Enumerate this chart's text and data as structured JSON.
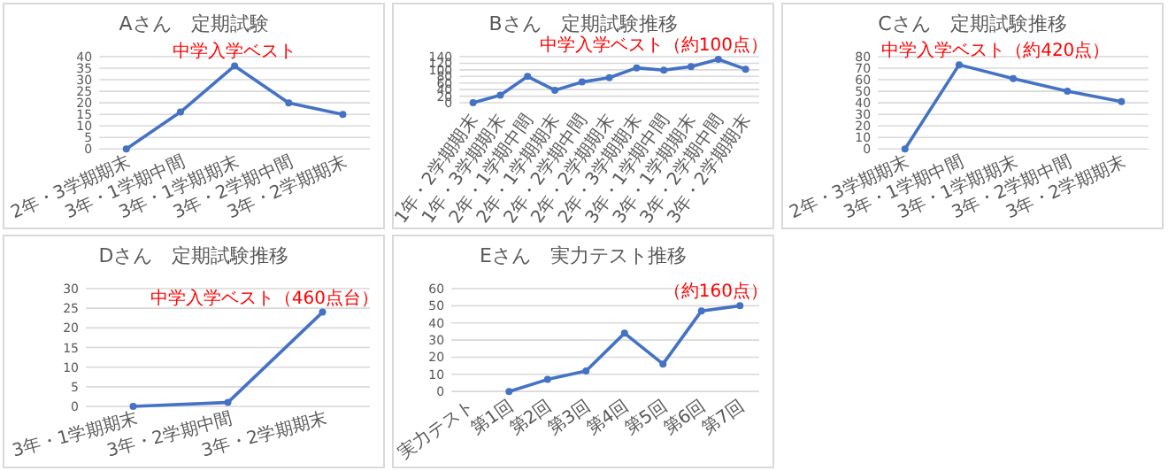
{
  "chart_data": [
    {
      "type": "line",
      "title": "Aさん　定期試験",
      "categories": [
        "2年・3学期期末",
        "3年・1学期中間",
        "3年・1学期期末",
        "3年・2学期中間",
        "3年・2学期期末"
      ],
      "values": [
        0,
        16,
        36,
        20,
        15
      ],
      "color": "#4472c4",
      "ylim": [
        0,
        40
      ],
      "yticks": [
        0,
        5,
        10,
        15,
        20,
        25,
        30,
        35,
        40
      ],
      "grid": "y",
      "marker": "circle",
      "line_style": "solid",
      "annotations": [
        {
          "text": "中学入学ベスト",
          "x": "3年・1学期期末",
          "y": 36
        }
      ]
    },
    {
      "type": "line",
      "title": "Bさん　定期試験推移",
      "categories": [
        "1年・2学期期末",
        "1年・3学期期末",
        "2年・1学期中間",
        "2年・1学期期末",
        "2年・2学期中間",
        "2年・2学期期末",
        "2年・3学期期末",
        "3年・1学期中間",
        "3年・1学期期末",
        "3年・2学期中間",
        "3年・2学期期末"
      ],
      "values": [
        0,
        23,
        80,
        38,
        63,
        76,
        106,
        99,
        110,
        132,
        102
      ],
      "color": "#4472c4",
      "ylim": [
        0,
        140
      ],
      "yticks": [
        0,
        20,
        40,
        60,
        80,
        100,
        120,
        140
      ],
      "grid": "y",
      "marker": "circle",
      "line_style": "solid",
      "annotations": [
        {
          "text": "中学入学ベスト（約100点）",
          "x": "3年・2学期中間",
          "y": 132
        }
      ]
    },
    {
      "type": "line",
      "title": "Cさん　定期試験推移",
      "categories": [
        "2年・3学期期末",
        "3年・1学期中間",
        "3年・1学期期末",
        "3年・2学期中間",
        "3年・2学期期末"
      ],
      "values": [
        0,
        73,
        61,
        50,
        41
      ],
      "color": "#4472c4",
      "ylim": [
        0,
        80
      ],
      "yticks": [
        0,
        10,
        20,
        30,
        40,
        50,
        60,
        70,
        80
      ],
      "grid": "y",
      "marker": "circle",
      "line_style": "solid",
      "annotations": [
        {
          "text": "中学入学ベスト（約420点）",
          "x": "3年・1学期中間",
          "y": 73
        }
      ]
    },
    {
      "type": "line",
      "title": "Dさん　定期試験推移",
      "categories": [
        "3年・1学期期末",
        "3年・2学期中間",
        "3年・2学期期末"
      ],
      "values": [
        0,
        1,
        24
      ],
      "color": "#4472c4",
      "ylim": [
        0,
        30
      ],
      "yticks": [
        0,
        5,
        10,
        15,
        20,
        25,
        30
      ],
      "grid": "y",
      "marker": "circle",
      "line_style": "solid",
      "annotations": [
        {
          "text": "中学入学ベスト（460点台）",
          "x": "3年・2学期期末",
          "y": 24
        }
      ]
    },
    {
      "type": "line",
      "title": "Eさん　実力テスト推移",
      "categories": [
        "実力テスト",
        "第1回",
        "第2回",
        "第3回",
        "第4回",
        "第5回",
        "第6回",
        "第7回"
      ],
      "values": [
        null,
        0,
        7,
        12,
        34,
        16,
        47,
        50
      ],
      "color": "#4472c4",
      "ylim": [
        0,
        60
      ],
      "yticks": [
        0,
        10,
        20,
        30,
        40,
        50,
        60
      ],
      "grid": "y",
      "marker": "circle",
      "line_style": "solid",
      "annotations": [
        {
          "text": "（約160点）",
          "x": "第7回",
          "y": 50
        }
      ]
    }
  ]
}
